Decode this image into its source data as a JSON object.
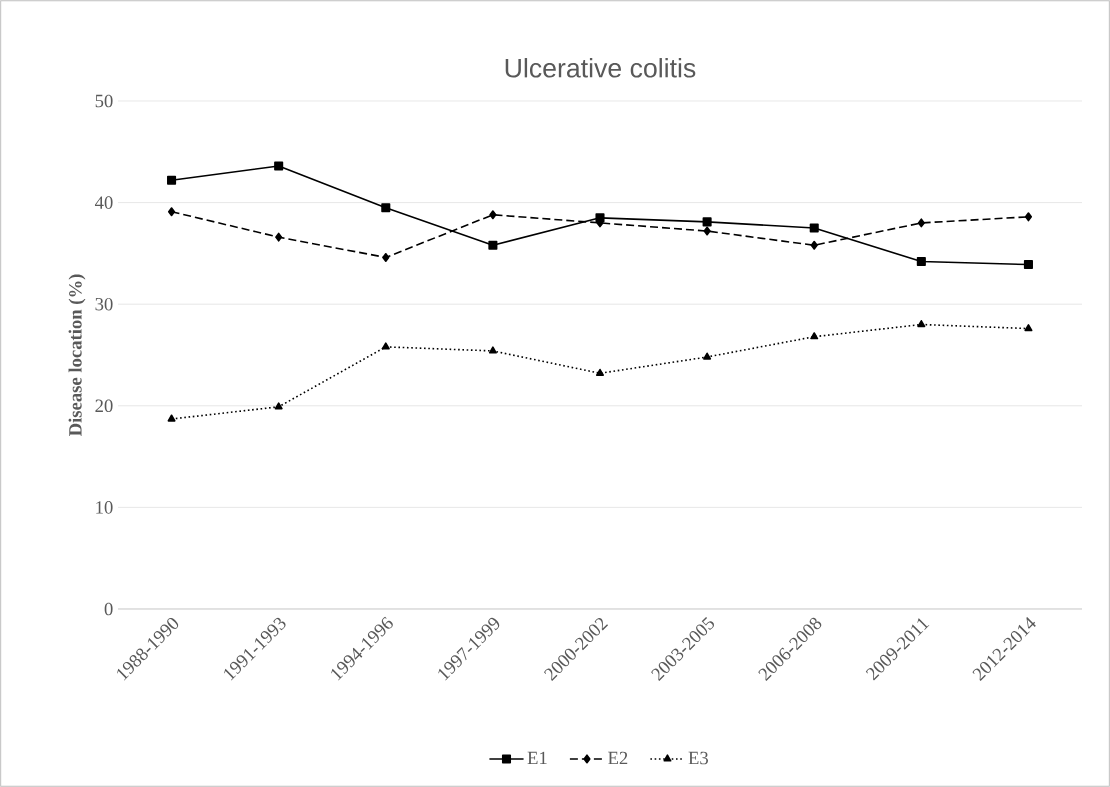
{
  "chart_data": {
    "type": "line",
    "title": "Ulcerative colitis",
    "ylabel": "Disease location (%)",
    "categories": [
      "1988-1990",
      "1991-1993",
      "1994-1996",
      "1997-1999",
      "2000-2002",
      "2003-2005",
      "2006-2008",
      "2009-2011",
      "2012-2014"
    ],
    "series": [
      {
        "name": "E1",
        "color": "#000000",
        "marker": "square",
        "line_style": "solid",
        "values": [
          42.2,
          43.6,
          39.5,
          35.8,
          38.5,
          38.1,
          37.5,
          34.2,
          33.9
        ]
      },
      {
        "name": "E2",
        "color": "#000000",
        "marker": "diamond",
        "line_style": "dashed",
        "values": [
          39.1,
          36.6,
          34.6,
          38.8,
          38.0,
          37.2,
          35.8,
          38.0,
          38.6
        ]
      },
      {
        "name": "E3",
        "color": "#000000",
        "marker": "triangle",
        "line_style": "dotted",
        "values": [
          18.7,
          19.9,
          25.8,
          25.4,
          23.2,
          24.8,
          26.8,
          28.0,
          27.6
        ]
      }
    ],
    "ylim": [
      0,
      50
    ],
    "yticks": [
      0,
      10,
      20,
      30,
      40,
      50
    ],
    "grid": "y",
    "legend": "bottom"
  }
}
